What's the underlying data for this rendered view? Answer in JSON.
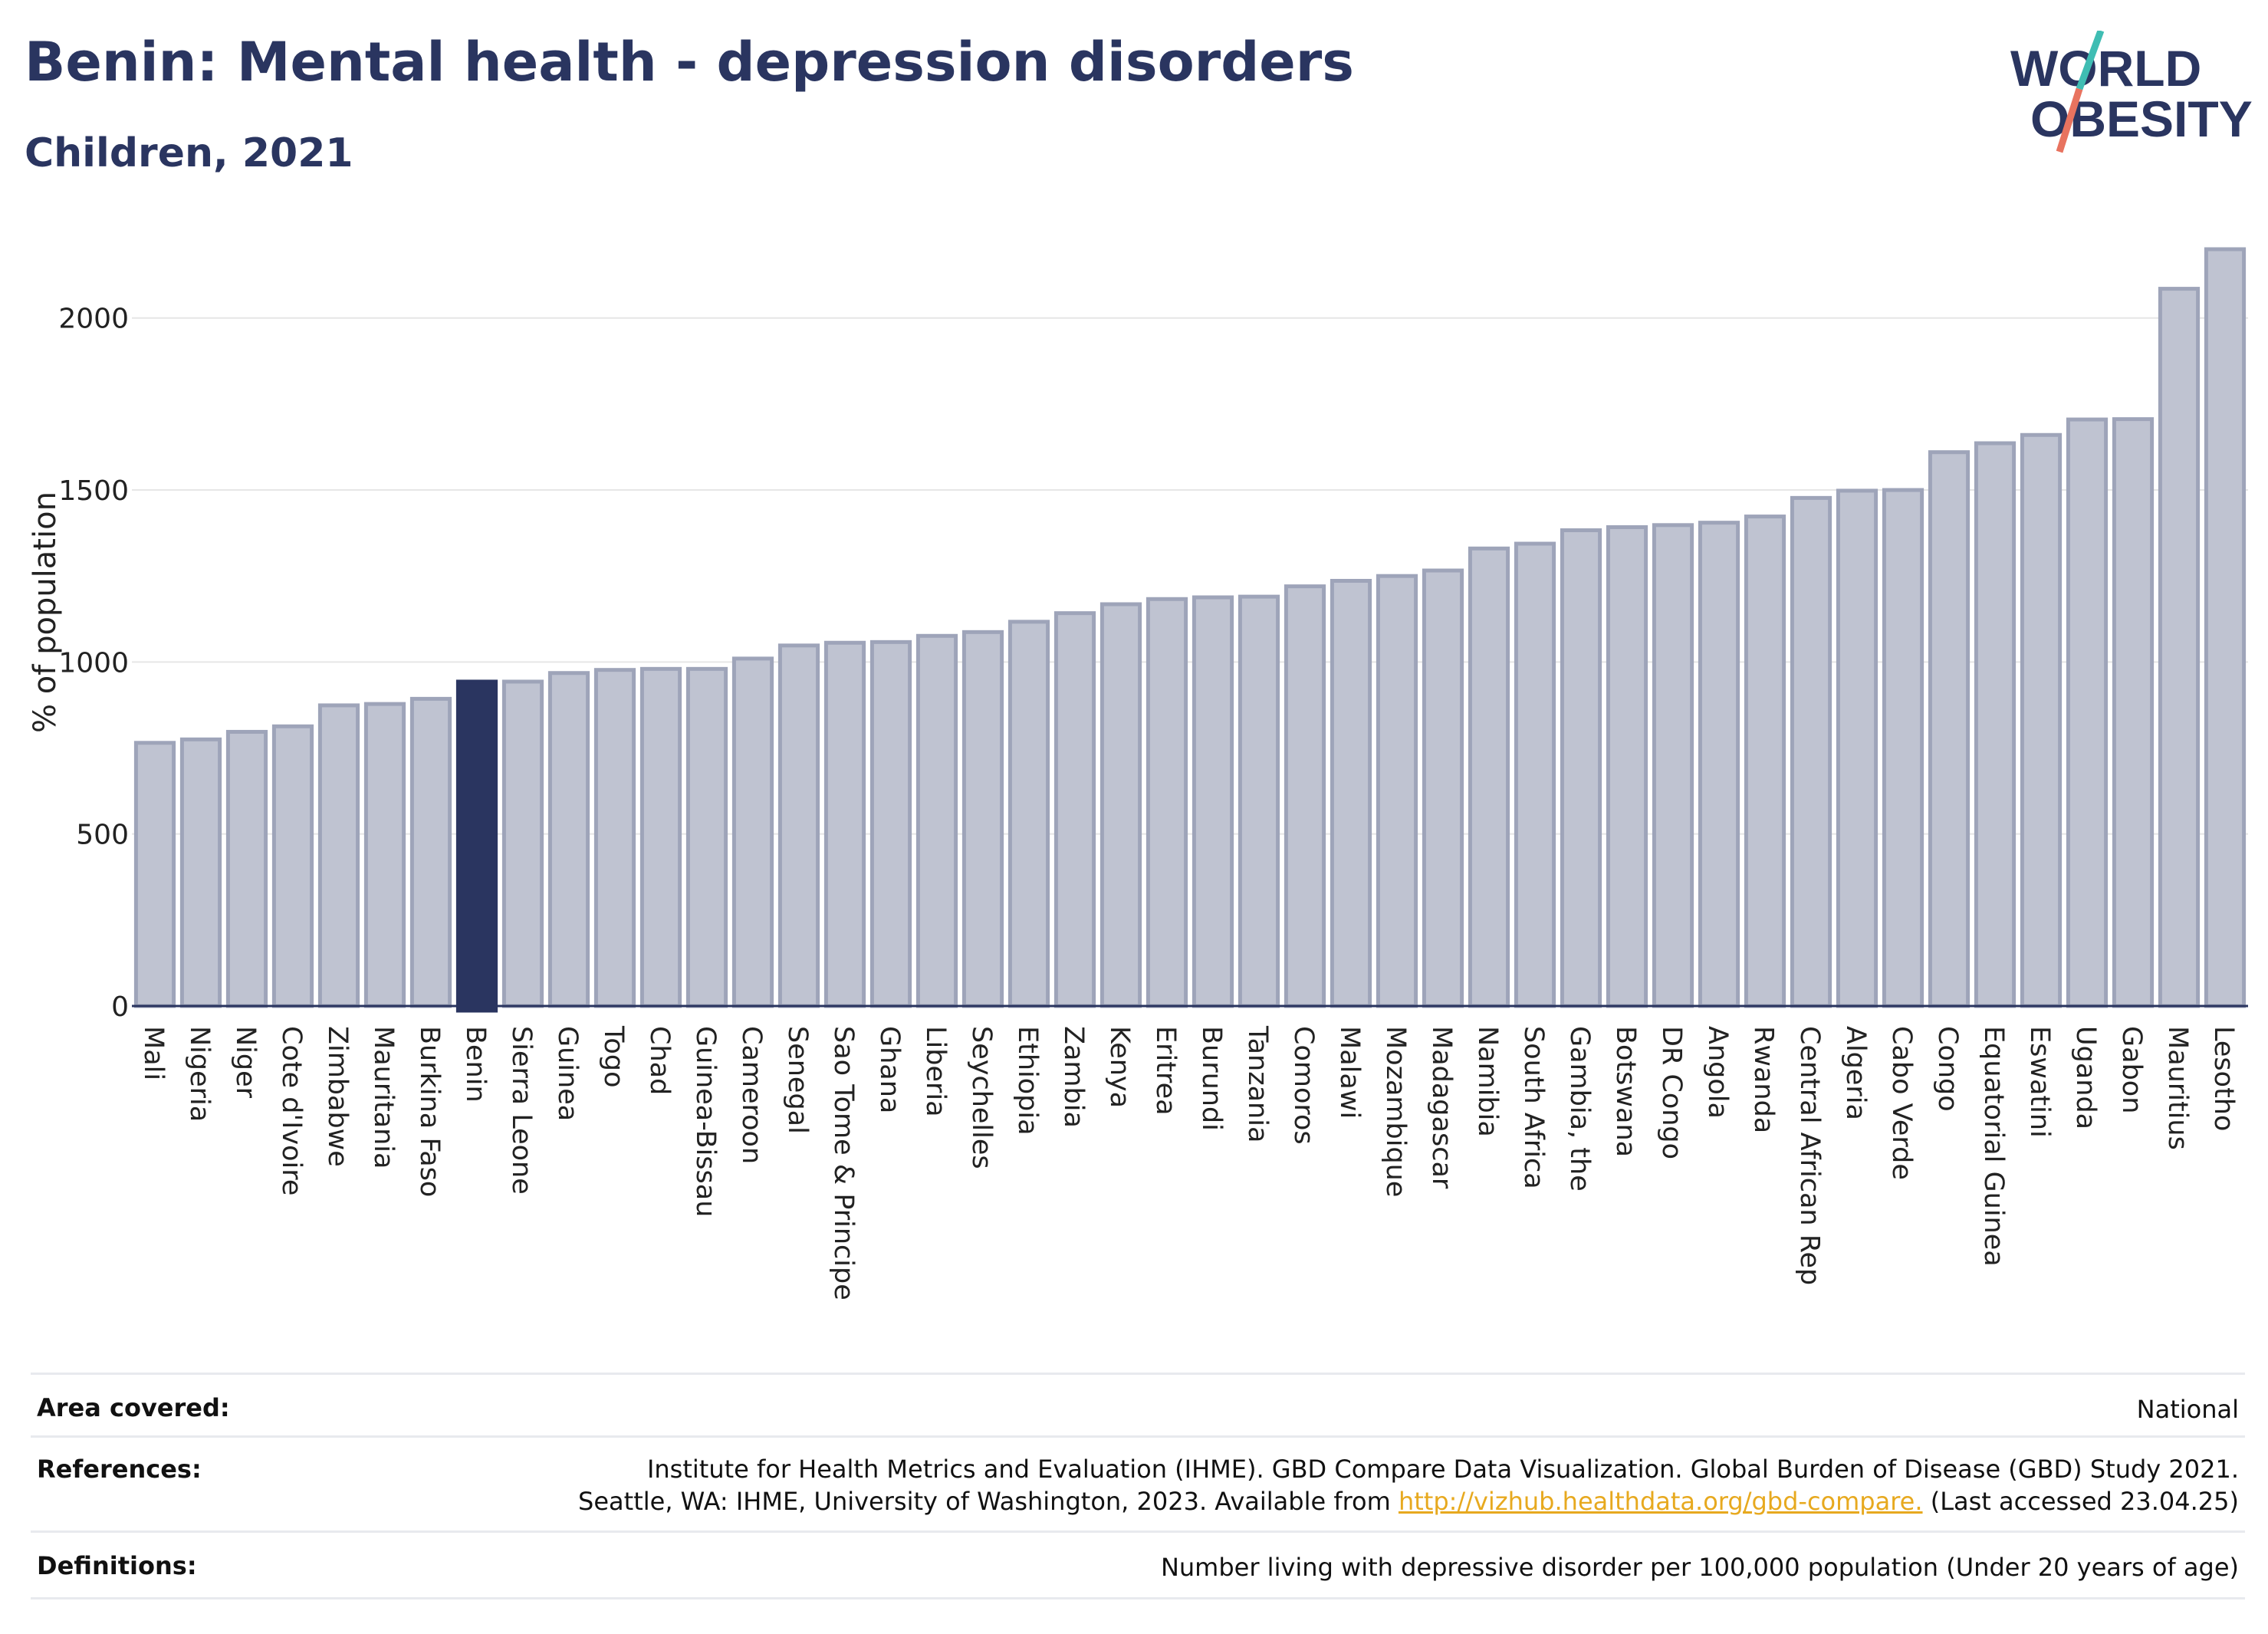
{
  "header": {
    "title": "Benin: Mental health - depression disorders",
    "subtitle": "Children, 2021"
  },
  "logo": {
    "line1": "WORLD",
    "line2": "OBESITY",
    "colors": {
      "text": "#2a3560",
      "slash_top": "#3fbdb3",
      "slash_bottom": "#e8735f"
    }
  },
  "colors": {
    "highlight": "#2a3560",
    "bar_fill": "#bfc3d1",
    "bar_stroke": "#9ea4b9",
    "gridline": "#e6e6e6"
  },
  "chart_data": {
    "type": "bar",
    "ylabel": "% of population",
    "ylim": [
      0,
      2200
    ],
    "yticks": [
      0,
      500,
      1000,
      1500,
      2000
    ],
    "highlight": "Benin",
    "categories": [
      "Mali",
      "Nigeria",
      "Niger",
      "Cote d'Ivoire",
      "Zimbabwe",
      "Mauritania",
      "Burkina Faso",
      "Benin",
      "Sierra Leone",
      "Guinea",
      "Togo",
      "Chad",
      "Guinea-Bissau",
      "Cameroon",
      "Senegal",
      "Sao Tome & Principe",
      "Ghana",
      "Liberia",
      "Seychelles",
      "Ethiopia",
      "Zambia",
      "Kenya",
      "Eritrea",
      "Burundi",
      "Tanzania",
      "Comoros",
      "Malawi",
      "Mozambique",
      "Madagascar",
      "Namibia",
      "South Africa",
      "Gambia, the",
      "Botswana",
      "DR Congo",
      "Angola",
      "Rwanda",
      "Central African Rep",
      "Algeria",
      "Cabo Verde",
      "Congo",
      "Equatorial Guinea",
      "Eswatini",
      "Uganda",
      "Gabon",
      "Mauritius",
      "Lesotho"
    ],
    "values": [
      765,
      775,
      797,
      813,
      874,
      878,
      893,
      943,
      943,
      968,
      977,
      980,
      980,
      1010,
      1048,
      1056,
      1058,
      1076,
      1087,
      1117,
      1142,
      1168,
      1183,
      1188,
      1190,
      1220,
      1236,
      1250,
      1266,
      1330,
      1344,
      1383,
      1392,
      1398,
      1405,
      1423,
      1477,
      1498,
      1500,
      1610,
      1636,
      1660,
      1705,
      1706,
      2085,
      2200
    ]
  },
  "meta": {
    "area_label": "Area covered:",
    "area_value": "National",
    "references_label": "References:",
    "references_line1": "Institute for Health Metrics and Evaluation (IHME). GBD Compare Data Visualization. Global Burden of Disease (GBD) Study 2021.",
    "references_line2_prefix": "Seattle, WA: IHME, University of Washington, 2023. Available from ",
    "references_link": "http://vizhub.healthdata.org/gbd-compare.",
    "references_line2_suffix": " (Last accessed 23.04.25)",
    "definitions_label": "Definitions:",
    "definitions_value": "Number living with depressive disorder per 100,000 population (Under 20 years of age)"
  }
}
